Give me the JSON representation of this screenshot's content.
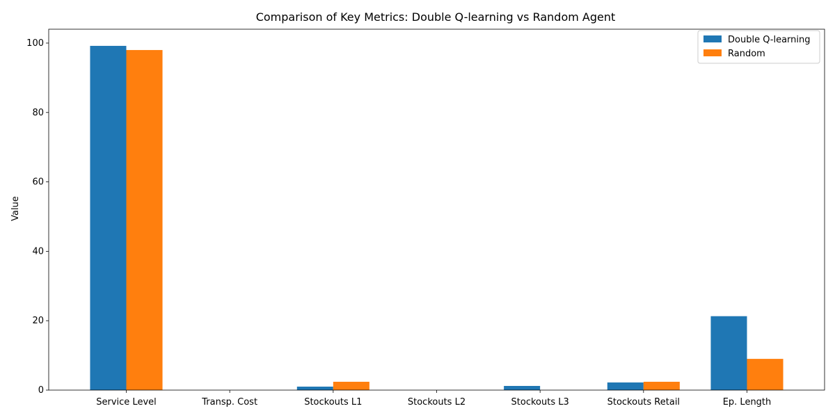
{
  "chart_data": {
    "type": "bar",
    "title": "Comparison of Key Metrics: Double Q-learning vs Random Agent",
    "xlabel": "",
    "ylabel": "Value",
    "ylim": [
      0,
      104
    ],
    "yticks": [
      0,
      20,
      40,
      60,
      80,
      100
    ],
    "categories": [
      "Service Level",
      "Transp. Cost",
      "Stockouts L1",
      "Stockouts L2",
      "Stockouts L3",
      "Stockouts Retail",
      "Ep. Length"
    ],
    "series": [
      {
        "name": "Double Q-learning",
        "color": "#1f77b4",
        "values": [
          99.2,
          0.0,
          1.0,
          0.0,
          1.2,
          2.2,
          21.3
        ]
      },
      {
        "name": "Random",
        "color": "#ff7f0e",
        "values": [
          98.0,
          0.0,
          2.4,
          0.0,
          0.0,
          2.4,
          9.0
        ]
      }
    ],
    "legend": "top-right",
    "grid": false
  }
}
